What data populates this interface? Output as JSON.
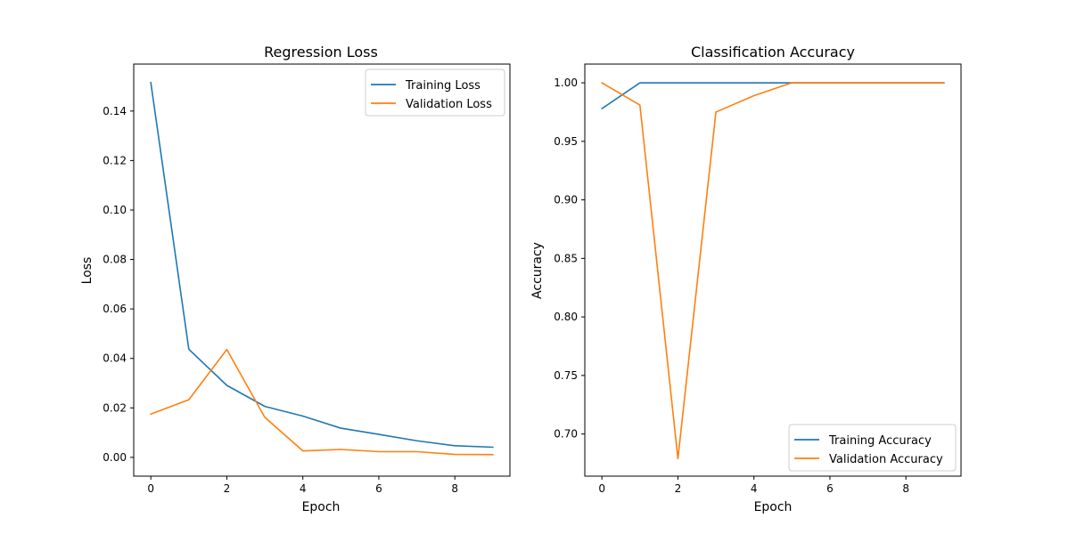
{
  "chart_data": [
    {
      "type": "line",
      "title": "Regression Loss",
      "xlabel": "Epoch",
      "ylabel": "Loss",
      "xlim": [
        -0.45,
        9.45
      ],
      "ylim": [
        -0.0076,
        0.159
      ],
      "xticks": [
        0,
        2,
        4,
        6,
        8
      ],
      "xtick_labels": [
        "0",
        "2",
        "4",
        "6",
        "8"
      ],
      "yticks": [
        0.0,
        0.02,
        0.04,
        0.06,
        0.08,
        0.1,
        0.12,
        0.14
      ],
      "ytick_labels": [
        "0.00",
        "0.02",
        "0.04",
        "0.06",
        "0.08",
        "0.10",
        "0.12",
        "0.14"
      ],
      "legend_position": "upper right",
      "grid": false,
      "x": [
        0,
        1,
        2,
        3,
        4,
        5,
        6,
        7,
        8,
        9
      ],
      "series": [
        {
          "name": "Training Loss",
          "color": "#1f77b4",
          "values": [
            0.1515,
            0.0437,
            0.0291,
            0.0206,
            0.0167,
            0.0118,
            0.0093,
            0.0067,
            0.0047,
            0.0041
          ]
        },
        {
          "name": "Validation Loss",
          "color": "#ff7f0e",
          "values": [
            0.0175,
            0.0233,
            0.0436,
            0.0162,
            0.0026,
            0.0032,
            0.0023,
            0.0023,
            0.0012,
            0.0011
          ]
        }
      ]
    },
    {
      "type": "line",
      "title": "Classification Accuracy",
      "xlabel": "Epoch",
      "ylabel": "Accuracy",
      "xlim": [
        -0.45,
        9.45
      ],
      "ylim": [
        0.664,
        1.016
      ],
      "xticks": [
        0,
        2,
        4,
        6,
        8
      ],
      "xtick_labels": [
        "0",
        "2",
        "4",
        "6",
        "8"
      ],
      "yticks": [
        0.7,
        0.75,
        0.8,
        0.85,
        0.9,
        0.95,
        1.0
      ],
      "ytick_labels": [
        "0.70",
        "0.75",
        "0.80",
        "0.85",
        "0.90",
        "0.95",
        "1.00"
      ],
      "legend_position": "lower right",
      "grid": false,
      "x": [
        0,
        1,
        2,
        3,
        4,
        5,
        6,
        7,
        8,
        9
      ],
      "series": [
        {
          "name": "Training Accuracy",
          "color": "#1f77b4",
          "values": [
            0.978,
            1.0,
            1.0,
            1.0,
            1.0,
            1.0,
            1.0,
            1.0,
            1.0,
            1.0
          ]
        },
        {
          "name": "Validation Accuracy",
          "color": "#ff7f0e",
          "values": [
            1.0,
            0.981,
            0.679,
            0.975,
            0.989,
            1.0,
            1.0,
            1.0,
            1.0,
            1.0
          ]
        }
      ]
    }
  ]
}
